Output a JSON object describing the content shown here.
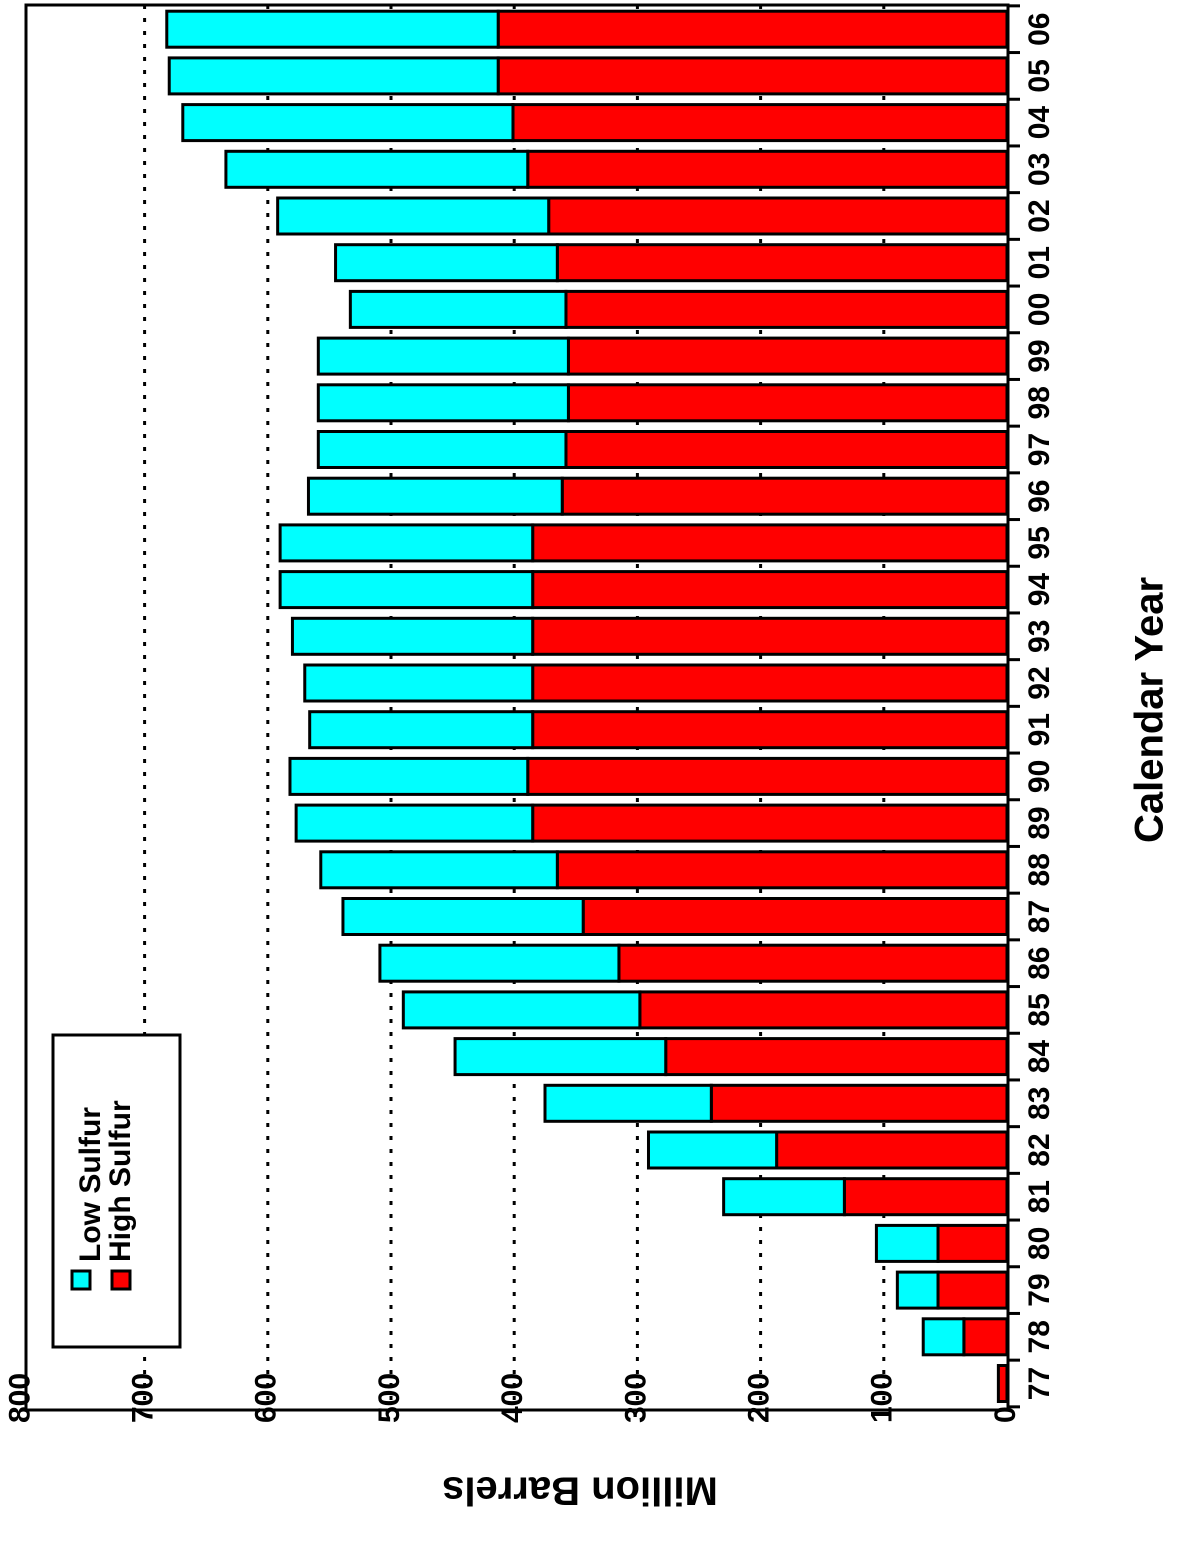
{
  "chart_data": {
    "type": "bar",
    "stacked": true,
    "orientation": "vertical (image rotated 90° clockwise)",
    "xlabel": "Calendar Year",
    "ylabel": "Million Barrels",
    "ylim": [
      0,
      800
    ],
    "yticks": [
      "0",
      "100",
      "200",
      "300",
      "400",
      "500",
      "600",
      "700",
      "800"
    ],
    "grid": "horizontal dotted at each tick",
    "legend_position": "top-left",
    "categories": [
      "77",
      "78",
      "79",
      "80",
      "81",
      "82",
      "83",
      "84",
      "85",
      "86",
      "87",
      "88",
      "89",
      "90",
      "91",
      "92",
      "93",
      "94",
      "95",
      "96",
      "97",
      "98",
      "99",
      "00",
      "01",
      "02",
      "03",
      "04",
      "05",
      "06"
    ],
    "series": [
      {
        "name": "High Sulfur",
        "color": "#ff0000",
        "values": [
          7,
          35,
          56,
          56,
          132,
          187,
          240,
          277,
          298,
          315,
          344,
          365,
          385,
          389,
          385,
          385,
          385,
          385,
          385,
          361,
          358,
          356,
          356,
          358,
          365,
          372,
          389,
          401,
          413,
          413
        ]
      },
      {
        "name": "Low Sulfur",
        "color": "#00ffff",
        "values": [
          0,
          33,
          33,
          50,
          98,
          104,
          135,
          171,
          192,
          194,
          195,
          192,
          192,
          193,
          181,
          185,
          195,
          205,
          205,
          206,
          201,
          203,
          203,
          175,
          180,
          220,
          245,
          268,
          267,
          269
        ]
      }
    ]
  }
}
